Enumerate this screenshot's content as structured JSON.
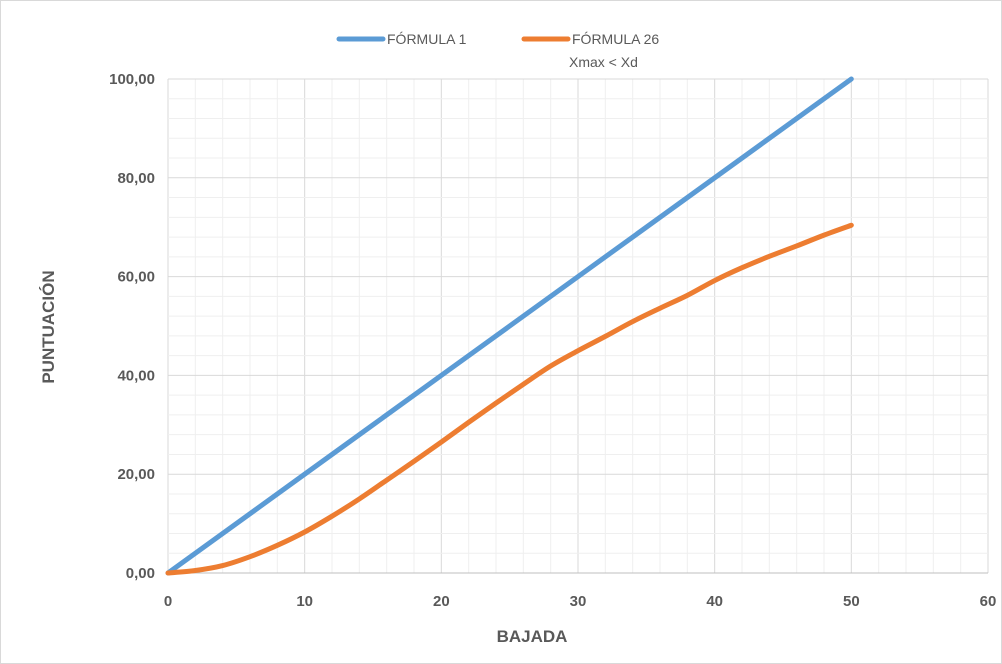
{
  "chart_data": {
    "type": "line",
    "title": "",
    "xlabel": "BAJADA",
    "ylabel": "PUNTUACIÓN",
    "xlim": [
      0,
      60
    ],
    "ylim": [
      0,
      100
    ],
    "x_ticks": [
      "0",
      "10",
      "20",
      "30",
      "40",
      "50",
      "60"
    ],
    "y_ticks": [
      "0,00",
      "20,00",
      "40,00",
      "60,00",
      "80,00",
      "100,00"
    ],
    "grid": true,
    "legend_position": "top-center",
    "legend_note": "Xmax < Xd",
    "series": [
      {
        "name": "FÓRMULA 1",
        "color": "#5B9BD5",
        "x": [
          0,
          10,
          20,
          30,
          40,
          50
        ],
        "y": [
          0,
          20,
          40,
          60,
          80,
          100
        ]
      },
      {
        "name": "FÓRMULA 26",
        "color": "#ED7D31",
        "x": [
          0,
          2,
          4,
          6,
          8,
          10,
          12,
          14,
          16,
          18,
          20,
          22,
          24,
          26,
          28,
          30,
          32,
          34,
          36,
          38,
          40,
          42,
          44,
          46,
          48,
          50
        ],
        "y": [
          0,
          0.5,
          1.5,
          3.3,
          5.6,
          8.3,
          11.5,
          15.0,
          18.8,
          22.6,
          26.5,
          30.5,
          34.4,
          38.2,
          41.9,
          45.0,
          47.9,
          50.9,
          53.6,
          56.2,
          59.2,
          61.8,
          64.1,
          66.2,
          68.4,
          70.4
        ]
      }
    ]
  }
}
